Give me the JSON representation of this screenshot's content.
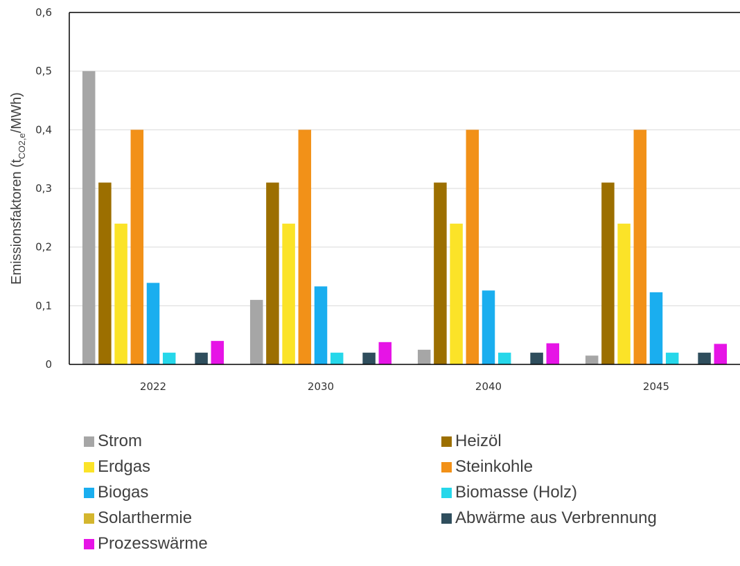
{
  "chart_data": {
    "type": "bar",
    "title": "",
    "xlabel": "",
    "ylabel": {
      "prefix": "Emissionsfaktoren (t",
      "subscript": "CO2,e",
      "suffix": "/MWh)"
    },
    "ylim": [
      0,
      0.6
    ],
    "yticks": [
      "0",
      "0,1",
      "0,2",
      "0,3",
      "0,4",
      "0,5",
      "0,6"
    ],
    "categories": [
      "2022",
      "2030",
      "2040",
      "2045"
    ],
    "grid": true,
    "legend_position": "bottom",
    "series": [
      {
        "name": "Strom",
        "color": "#a6a6a6",
        "values": [
          0.5,
          0.11,
          0.025,
          0.015
        ]
      },
      {
        "name": "Heizöl",
        "color": "#9c6f00",
        "values": [
          0.31,
          0.31,
          0.31,
          0.31
        ]
      },
      {
        "name": "Erdgas",
        "color": "#fbe328",
        "values": [
          0.24,
          0.24,
          0.24,
          0.24
        ]
      },
      {
        "name": "Steinkohle",
        "color": "#f29118",
        "values": [
          0.4,
          0.4,
          0.4,
          0.4
        ]
      },
      {
        "name": "Biogas",
        "color": "#1aaeef",
        "values": [
          0.139,
          0.133,
          0.126,
          0.123
        ]
      },
      {
        "name": "Biomasse (Holz)",
        "color": "#26d7ea",
        "values": [
          0.02,
          0.02,
          0.02,
          0.02
        ]
      },
      {
        "name": "Solarthermie",
        "color": "#d4b62e",
        "values": [
          0,
          0,
          0,
          0
        ]
      },
      {
        "name": "Abwärme aus Verbrennung",
        "color": "#2f4e5d",
        "values": [
          0.02,
          0.02,
          0.02,
          0.02
        ]
      },
      {
        "name": "Prozesswärme",
        "color": "#e614e6",
        "values": [
          0.04,
          0.038,
          0.036,
          0.035
        ]
      }
    ]
  }
}
